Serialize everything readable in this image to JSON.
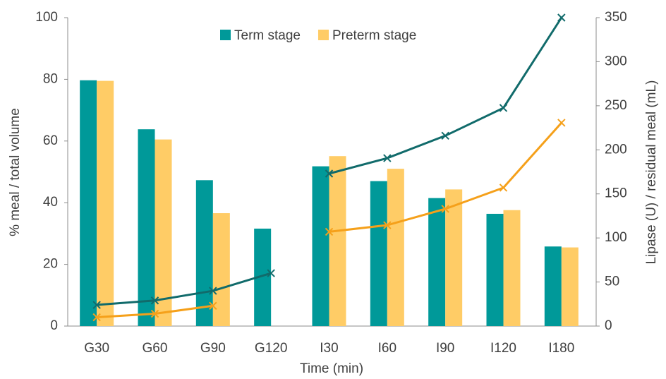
{
  "chart_data": {
    "type": "bar",
    "xlabel": "Time (min)",
    "ylabel": "% meal / total volume",
    "y2label": "Lipase (U) / residual meal (mL)",
    "categories": [
      "G30",
      "G60",
      "G90",
      "G120",
      "I30",
      "I60",
      "I90",
      "I120",
      "I180"
    ],
    "series": [
      {
        "name": "Term stage",
        "color": "#009999",
        "values": [
          79.7,
          63.8,
          47.3,
          31.6,
          51.8,
          47,
          41.5,
          36.4,
          25.8
        ]
      },
      {
        "name": "Preterm stage",
        "color": "#ffcc66",
        "values": [
          79.5,
          60.5,
          36.6,
          null,
          55.1,
          51,
          44.3,
          37.6,
          25.5
        ]
      },
      {
        "type": "line",
        "axis": "y2",
        "color": "#116b6b",
        "values": [
          24,
          29,
          40,
          60,
          null,
          null,
          null,
          null,
          null
        ]
      },
      {
        "type": "line",
        "axis": "y2",
        "color": "#116b6b",
        "values": [
          null,
          null,
          null,
          null,
          173,
          190.6,
          216,
          247.5,
          350
        ]
      },
      {
        "type": "line",
        "axis": "y2",
        "color": "#f5a01a",
        "values": [
          10,
          14,
          23,
          null,
          null,
          null,
          null,
          null,
          null
        ]
      },
      {
        "type": "line",
        "axis": "y2",
        "color": "#f5a01a",
        "values": [
          null,
          null,
          null,
          null,
          107,
          114.5,
          133,
          157,
          230.7
        ]
      }
    ],
    "ylim": [
      0,
      100
    ],
    "yticks": [
      0,
      20,
      40,
      60,
      80,
      100
    ],
    "y2lim": [
      0,
      350
    ],
    "y2ticks": [
      0,
      50,
      100,
      150,
      200,
      250,
      300,
      350
    ],
    "grid": false,
    "legend": "top"
  }
}
